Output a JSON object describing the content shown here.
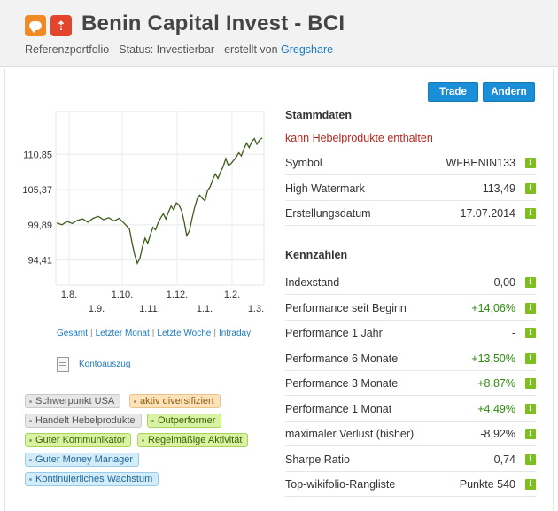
{
  "header": {
    "title": "Benin Capital Invest - BCI",
    "subtitle_prefix": "Referenzportfolio - Status: Investierbar - erstellt von ",
    "author": "Gregshare",
    "icons": [
      "chat-bubble-icon",
      "arrow-up-icon"
    ],
    "icon_colors": {
      "chat": "#f08a24",
      "arrow": "#e2452b"
    }
  },
  "buttons": {
    "trade": "Trade",
    "aendern": "Andern"
  },
  "chart_data": {
    "type": "line",
    "y_ticks": [
      "110,85",
      "105,37",
      "99,89",
      "94,41"
    ],
    "x_ticks_top": [
      "1.8.",
      "1.10.",
      "1.12.",
      "1.2."
    ],
    "x_ticks_bottom": [
      "1.9.",
      "1.11.",
      "1.1.",
      "1.3."
    ],
    "ylim": [
      90.5,
      117.5
    ],
    "grid": true,
    "series": [
      {
        "values": [
          [
            0,
            100.2
          ],
          [
            4,
            99.9
          ],
          [
            8,
            100.4
          ],
          [
            12,
            100.1
          ],
          [
            16,
            100.6
          ],
          [
            20,
            100.8
          ],
          [
            24,
            100.3
          ],
          [
            28,
            100.9
          ],
          [
            32,
            101.2
          ],
          [
            36,
            100.7
          ],
          [
            40,
            101.0
          ],
          [
            44,
            100.5
          ],
          [
            48,
            100.9
          ],
          [
            52,
            100.1
          ],
          [
            56,
            99.2
          ],
          [
            58,
            97.0
          ],
          [
            60,
            95.2
          ],
          [
            62,
            93.9
          ],
          [
            64,
            94.7
          ],
          [
            66,
            96.5
          ],
          [
            68,
            97.8
          ],
          [
            70,
            97.0
          ],
          [
            72,
            98.3
          ],
          [
            74,
            99.5
          ],
          [
            76,
            99.1
          ],
          [
            78,
            100.2
          ],
          [
            80,
            101.0
          ],
          [
            82,
            101.6
          ],
          [
            84,
            100.8
          ],
          [
            86,
            101.9
          ],
          [
            88,
            102.8
          ],
          [
            90,
            102.2
          ],
          [
            92,
            103.3
          ],
          [
            94,
            103.0
          ],
          [
            96,
            102.1
          ],
          [
            98,
            100.4
          ],
          [
            100,
            98.2
          ],
          [
            102,
            98.9
          ],
          [
            104,
            100.8
          ],
          [
            106,
            102.5
          ],
          [
            108,
            103.9
          ],
          [
            110,
            104.5
          ],
          [
            112,
            104.0
          ],
          [
            114,
            103.6
          ],
          [
            116,
            105.2
          ],
          [
            118,
            105.8
          ],
          [
            120,
            106.9
          ],
          [
            122,
            107.8
          ],
          [
            124,
            107.1
          ],
          [
            126,
            108.1
          ],
          [
            128,
            108.9
          ],
          [
            130,
            110.2
          ],
          [
            132,
            109.1
          ],
          [
            134,
            109.4
          ],
          [
            136,
            109.9
          ],
          [
            138,
            110.4
          ],
          [
            140,
            111.1
          ],
          [
            142,
            110.6
          ],
          [
            144,
            111.7
          ],
          [
            146,
            112.6
          ],
          [
            148,
            111.9
          ],
          [
            150,
            112.8
          ],
          [
            152,
            113.3
          ],
          [
            154,
            112.4
          ],
          [
            156,
            113.1
          ],
          [
            158,
            113.4
          ]
        ]
      }
    ],
    "line_color": "#3f5c1c"
  },
  "ranges": [
    "Gesamt",
    "Letzter Monat",
    "Letzte Woche",
    "Intraday"
  ],
  "kontoauszug": "Kontoauszug",
  "tags": [
    {
      "label": "Schwerpunkt USA",
      "style": "grey"
    },
    {
      "label": "aktiv diversifiziert",
      "style": "orange"
    },
    {
      "label": "Handelt Hebelprodukte",
      "style": "grey"
    },
    {
      "label": "Outperformer",
      "style": "green"
    },
    {
      "label": "Guter Kommunikator",
      "style": "green"
    },
    {
      "label": "Regelmäßige Aktivität",
      "style": "green"
    },
    {
      "label": "Guter Money Manager",
      "style": "blue"
    },
    {
      "label": "Kontinuierliches Wachstum",
      "style": "blue"
    }
  ],
  "stammdaten": {
    "title": "Stammdaten",
    "warning": "kann Hebelprodukte enthalten",
    "rows": [
      {
        "label": "Symbol",
        "value": "WFBENIN133"
      },
      {
        "label": "High Watermark",
        "value": "113,49"
      },
      {
        "label": "Erstellungsdatum",
        "value": "17.07.2014"
      }
    ]
  },
  "kennzahlen": {
    "title": "Kennzahlen",
    "rows": [
      {
        "label": "Indexstand",
        "value": "0,00",
        "positive": false
      },
      {
        "label": "Performance seit Beginn",
        "value": "+14,06%",
        "positive": true
      },
      {
        "label": "Performance 1 Jahr",
        "value": "-",
        "positive": false
      },
      {
        "label": "Performance 6 Monate",
        "value": "+13,50%",
        "positive": true
      },
      {
        "label": "Performance 3 Monate",
        "value": "+8,87%",
        "positive": true
      },
      {
        "label": "Performance 1 Monat",
        "value": "+4,49%",
        "positive": true
      },
      {
        "label": "maximaler Verlust (bisher)",
        "value": "-8,92%",
        "positive": false
      },
      {
        "label": "Sharpe Ratio",
        "value": "0,74",
        "positive": false
      },
      {
        "label": "Top-wikifolio-Rangliste",
        "value": "Punkte 540",
        "positive": false
      }
    ]
  },
  "info_glyph": "i"
}
